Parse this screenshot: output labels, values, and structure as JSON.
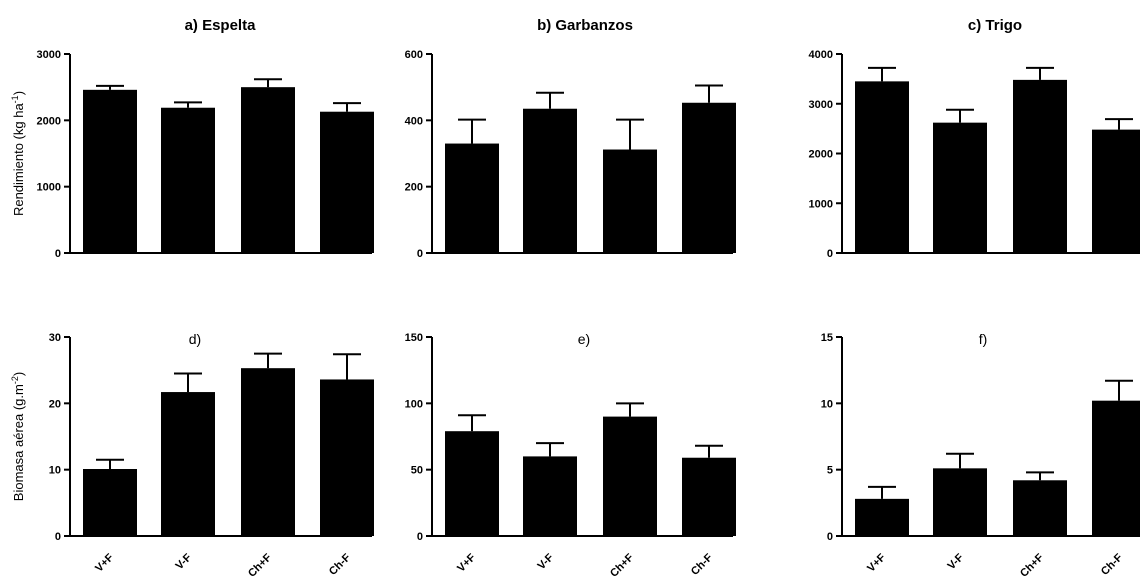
{
  "chart_data": [
    {
      "type": "bar",
      "panel": "a",
      "title": "a) Espelta",
      "ylabel": "Rendimiento (kg ha",
      "ylabel_sup": "-1",
      "ylabel_end": ")",
      "categories": [
        "V+F",
        "V-F",
        "Ch+F",
        "Ch-F"
      ],
      "values": [
        2460,
        2190,
        2500,
        2130
      ],
      "errors": [
        60,
        80,
        120,
        130
      ],
      "ylim": [
        0,
        3000
      ],
      "yticks": [
        0,
        1000,
        2000,
        3000
      ],
      "show_xticklabels": false
    },
    {
      "type": "bar",
      "panel": "b",
      "title": "b) Garbanzos",
      "categories": [
        "V+F",
        "V-F",
        "Ch+F",
        "Ch-F"
      ],
      "values": [
        330,
        435,
        312,
        453
      ],
      "errors": [
        72,
        48,
        90,
        52
      ],
      "ylim": [
        0,
        600
      ],
      "yticks": [
        0,
        200,
        400,
        600
      ],
      "show_xticklabels": false
    },
    {
      "type": "bar",
      "panel": "c",
      "title": "c) Trigo",
      "categories": [
        "V+F",
        "V-F",
        "Ch+F",
        "Ch-F"
      ],
      "values": [
        3450,
        2620,
        3480,
        2480
      ],
      "errors": [
        270,
        260,
        240,
        210
      ],
      "ylim": [
        0,
        4000
      ],
      "yticks": [
        0,
        1000,
        2000,
        3000,
        4000
      ],
      "show_xticklabels": false
    },
    {
      "type": "bar",
      "panel": "d",
      "annotation": "d)",
      "ylabel": "Biomasa aérea (g.m",
      "ylabel_sup": "-2",
      "ylabel_end": ")",
      "categories": [
        "V+F",
        "V-F",
        "Ch+F",
        "Ch-F"
      ],
      "values": [
        10.1,
        21.7,
        25.3,
        23.6
      ],
      "errors": [
        1.4,
        2.8,
        2.2,
        3.8
      ],
      "ylim": [
        0,
        30
      ],
      "yticks": [
        0,
        10,
        20,
        30
      ],
      "show_xticklabels": true
    },
    {
      "type": "bar",
      "panel": "e",
      "annotation": "e)",
      "categories": [
        "V+F",
        "V-F",
        "Ch+F",
        "Ch-F"
      ],
      "values": [
        79,
        60,
        90,
        59
      ],
      "errors": [
        12,
        10,
        10,
        9
      ],
      "ylim": [
        0,
        150
      ],
      "yticks": [
        0,
        50,
        100,
        150
      ],
      "show_xticklabels": true
    },
    {
      "type": "bar",
      "panel": "f",
      "annotation": "f)",
      "categories": [
        "V+F",
        "V-F",
        "Ch+F",
        "Ch-F"
      ],
      "values": [
        2.8,
        5.1,
        4.2,
        10.2
      ],
      "errors": [
        0.9,
        1.1,
        0.6,
        1.5
      ],
      "ylim": [
        0,
        15
      ],
      "yticks": [
        0,
        5,
        10,
        15
      ],
      "show_xticklabels": true
    }
  ]
}
